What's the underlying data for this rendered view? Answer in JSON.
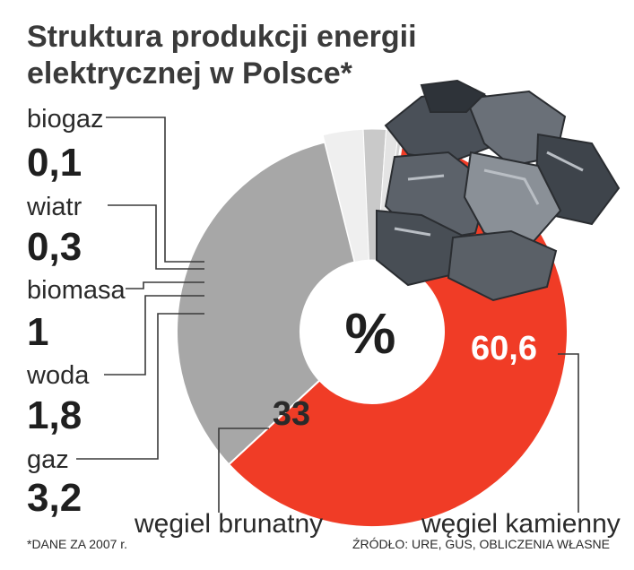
{
  "chart_data": {
    "type": "pie",
    "title": "Struktura produkcji energii elektrycznej w Polsce*",
    "center_label": "%",
    "slices": [
      {
        "name": "węgiel kamienny",
        "value": 60.6,
        "value_label": "60,6",
        "color": "#f03c26"
      },
      {
        "name": "węgiel brunatny",
        "value": 33,
        "value_label": "33",
        "color": "#a7a7a7"
      },
      {
        "name": "gaz",
        "value": 3.2,
        "value_label": "3,2",
        "color": "#efefef"
      },
      {
        "name": "woda",
        "value": 1.8,
        "value_label": "1,8",
        "color": "#c9c9c9"
      },
      {
        "name": "biomasa",
        "value": 1,
        "value_label": "1",
        "color": "#e4e4e4"
      },
      {
        "name": "wiatr",
        "value": 0.3,
        "value_label": "0,3",
        "color": "#d2d2d2"
      },
      {
        "name": "biogaz",
        "value": 0.1,
        "value_label": "0,1",
        "color": "#f4f4f4"
      }
    ]
  },
  "footnote": "*DANE ZA 2007 r.",
  "source": "ŹRÓDŁO: URE, GUS, OBLICZENIA WŁASNE",
  "decorative": {
    "image": "coal-lumps"
  }
}
